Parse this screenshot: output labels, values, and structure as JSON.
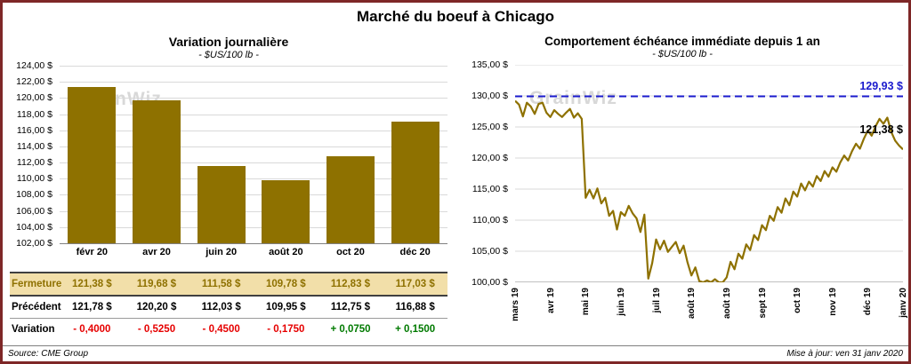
{
  "page": {
    "title": "Marché du boeuf à Chicago",
    "source": "Source: CME Group",
    "updated": "Mise à jour: ven 31 janv 2020",
    "watermark": "GrainWiz"
  },
  "colors": {
    "accent_gold": "#8e7100",
    "close_row_bg": "#f2dfa9",
    "negative": "#e60000",
    "positive": "#007a00",
    "reference_blue": "#1a1acd",
    "border_maroon": "#7e2727",
    "gridline": "#d9d9d9",
    "watermark_gray": "#d8d8d8"
  },
  "chart_data": [
    {
      "type": "bar",
      "title": "Variation  journalière",
      "subtitle": "- $US/100 lb -",
      "categories": [
        "févr 20",
        "avr 20",
        "juin 20",
        "août 20",
        "oct 20",
        "déc 20"
      ],
      "values": [
        121.38,
        119.68,
        111.58,
        109.78,
        112.83,
        117.03
      ],
      "ylim": [
        102,
        124
      ],
      "ytick_step": 2,
      "ytick_labels": [
        "124,00 $",
        "122,00 $",
        "120,00 $",
        "118,00 $",
        "116,00 $",
        "114,00 $",
        "112,00 $",
        "110,00 $",
        "108,00 $",
        "106,00 $",
        "104,00 $",
        "102,00 $"
      ],
      "grid": true,
      "legend": "none"
    },
    {
      "type": "line",
      "title": "Comportement  échéance  immédiate  depuis 1 an",
      "subtitle": "- $US/100 lb -",
      "x_tick_labels": [
        "mars 19",
        "avr 19",
        "mai 19",
        "juin 19",
        "juil 19",
        "août 19",
        "août 19",
        "sept 19",
        "oct 19",
        "nov 19",
        "déc 19",
        "janv 20"
      ],
      "ylim": [
        100,
        135
      ],
      "ytick_step": 5,
      "ytick_labels": [
        "135,00 $",
        "130,00 $",
        "125,00 $",
        "120,00 $",
        "115,00 $",
        "110,00 $",
        "105,00 $",
        "100,00 $"
      ],
      "values": [
        129.2,
        128.6,
        126.7,
        128.9,
        128.3,
        127.1,
        128.7,
        128.9,
        127.3,
        126.6,
        127.7,
        127.1,
        126.6,
        127.3,
        127.9,
        126.5,
        127.2,
        126.3,
        113.6,
        114.9,
        113.5,
        115.1,
        112.7,
        113.6,
        110.7,
        111.5,
        108.5,
        111.3,
        110.7,
        112.3,
        111.1,
        110.3,
        108.1,
        110.9,
        100.6,
        103.1,
        106.9,
        105.3,
        106.7,
        104.9,
        105.7,
        106.5,
        104.7,
        105.9,
        103.2,
        101.1,
        102.4,
        100.2,
        100.0,
        100.3,
        100.0,
        100.5,
        100.0,
        100.0,
        100.8,
        103.3,
        102.1,
        104.6,
        103.8,
        106.1,
        105.2,
        107.6,
        106.8,
        109.2,
        108.4,
        110.7,
        109.9,
        112.1,
        111.2,
        113.5,
        112.4,
        114.6,
        113.8,
        115.9,
        114.8,
        116.2,
        115.4,
        117.1,
        116.3,
        117.9,
        117.0,
        118.5,
        117.8,
        119.3,
        120.4,
        119.6,
        121.1,
        122.3,
        121.5,
        123.1,
        124.4,
        123.6,
        125.1,
        126.3,
        125.5,
        126.5,
        124.2,
        122.8,
        122.0,
        121.38
      ],
      "reference_line": {
        "value": 129.93,
        "label": "129,93 $",
        "style": "dashed"
      },
      "end_label": {
        "value": 121.38,
        "label": "121,38 $"
      },
      "grid": true,
      "legend": "none"
    }
  ],
  "table": {
    "rows": [
      {
        "label": "Fermeture",
        "values": [
          "121,38  $",
          "119,68  $",
          "111,58  $",
          "109,78  $",
          "112,83  $",
          "117,03  $"
        ]
      },
      {
        "label": "Précédent",
        "values": [
          "121,78  $",
          "120,20  $",
          "112,03  $",
          "109,95  $",
          "112,75  $",
          "116,88  $"
        ]
      },
      {
        "label": "Variation",
        "values": [
          "- 0,4000",
          "- 0,5250",
          "- 0,4500",
          "- 0,1750",
          "+ 0,0750",
          "+ 0,1500"
        ],
        "signs": [
          "n",
          "n",
          "n",
          "n",
          "p",
          "p"
        ]
      }
    ]
  }
}
